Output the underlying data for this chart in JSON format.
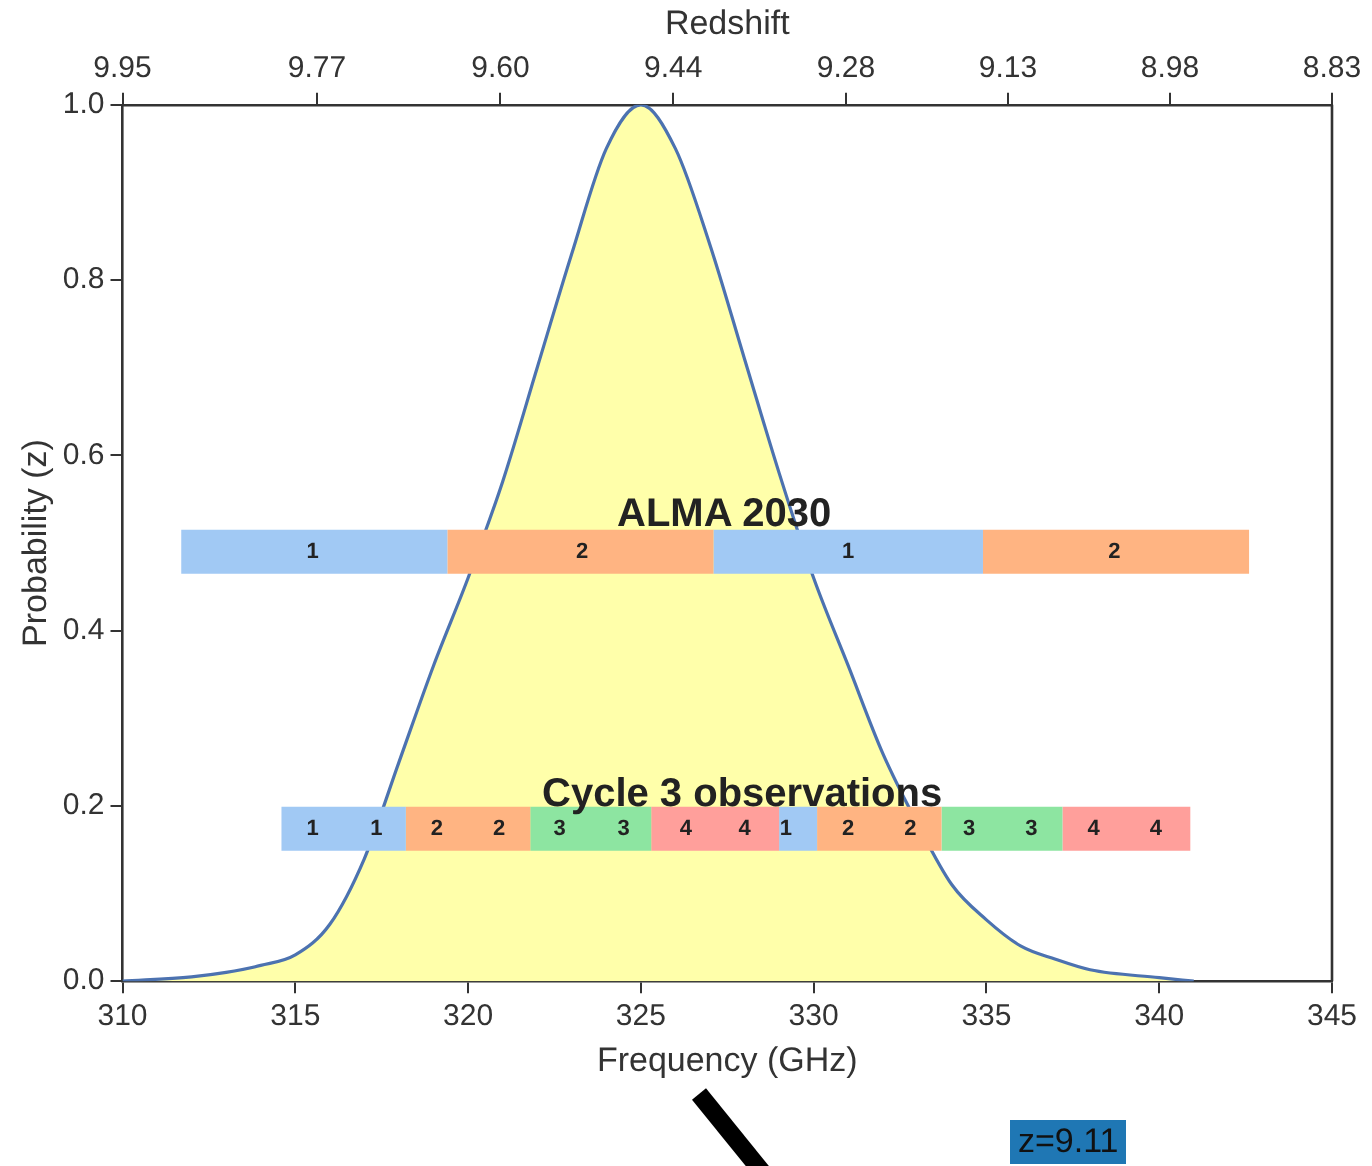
{
  "chart_data": {
    "type": "line",
    "xlabel": "Frequency (GHz)",
    "ylabel": "Probability (z)",
    "x2label": "Redshift",
    "xlim": [
      310,
      345
    ],
    "xticks": [
      310,
      315,
      320,
      325,
      330,
      335,
      340,
      345
    ],
    "ylim": [
      0,
      1
    ],
    "yticks": [
      {
        "value": 0,
        "label": "0.0"
      },
      {
        "value": 0.2,
        "label": "0.2"
      },
      {
        "value": 0.4,
        "label": "0.4"
      },
      {
        "value": 0.6,
        "label": "0.6"
      },
      {
        "value": 0.8,
        "label": "0.8"
      },
      {
        "value": 1,
        "label": "1.0"
      }
    ],
    "x2lim": [
      9.95,
      8.83
    ],
    "x2ticks": [
      {
        "value": 9.95,
        "label": "9.95"
      },
      {
        "value": 9.77,
        "label": "9.77"
      },
      {
        "value": 9.6,
        "label": "9.60"
      },
      {
        "value": 9.44,
        "label": "9.44"
      },
      {
        "value": 9.28,
        "label": "9.28"
      },
      {
        "value": 9.13,
        "label": "9.13"
      },
      {
        "value": 8.98,
        "label": "8.98"
      },
      {
        "value": 8.83,
        "label": "8.83"
      }
    ],
    "grid": false,
    "legend": false,
    "marker": "none",
    "line_style": "solid",
    "series": [
      {
        "type": "area",
        "color": "#ffffaa",
        "x": [
          310,
          312,
          313,
          314,
          315,
          316,
          317,
          318,
          319,
          320,
          321,
          322,
          323,
          324,
          325,
          326,
          327,
          328,
          329,
          330,
          331,
          332,
          333,
          334,
          335,
          336,
          337,
          338,
          340,
          341
        ],
        "values": [
          0,
          0.005,
          0.01,
          0.018,
          0.03,
          0.065,
          0.14,
          0.25,
          0.36,
          0.46,
          0.57,
          0.7,
          0.83,
          0.95,
          1,
          0.95,
          0.84,
          0.71,
          0.58,
          0.46,
          0.36,
          0.26,
          0.18,
          0.11,
          0.07,
          0.04,
          0.025,
          0.013,
          0.004,
          0
        ]
      },
      {
        "color": "#a1c9f4",
        "x": [
          311.7,
          319.4
        ],
        "values": [
          0.49,
          0.49
        ]
      },
      {
        "color": "#ffb482",
        "x": [
          319.4,
          327.1
        ],
        "values": [
          0.49,
          0.49
        ]
      },
      {
        "color": "#a1c9f4",
        "x": [
          327.1,
          334.9
        ],
        "values": [
          0.49,
          0.49
        ]
      },
      {
        "color": "#ffb482",
        "x": [
          334.9,
          342.6
        ],
        "values": [
          0.49,
          0.49
        ]
      },
      {
        "color": "#a1c9f4",
        "x": [
          314.6,
          318.2
        ],
        "values": [
          0.174,
          0.174
        ]
      },
      {
        "color": "#ffb482",
        "x": [
          318.2,
          321.8
        ],
        "values": [
          0.174,
          0.174
        ]
      },
      {
        "color": "#8de5a1",
        "x": [
          321.8,
          325.3
        ],
        "values": [
          0.174,
          0.174
        ]
      },
      {
        "color": "#ff9f9b",
        "x": [
          325.3,
          329.0
        ],
        "values": [
          0.174,
          0.174
        ]
      },
      {
        "color": "#a1c9f4",
        "x": [
          329.0,
          330.1
        ],
        "values": [
          0.174,
          0.174
        ]
      },
      {
        "color": "#ffb482",
        "x": [
          330.1,
          333.7
        ],
        "values": [
          0.174,
          0.174
        ]
      },
      {
        "color": "#8de5a1",
        "x": [
          333.7,
          337.2
        ],
        "values": [
          0.174,
          0.174
        ]
      },
      {
        "color": "#ff9f9b",
        "x": [
          337.2,
          340.9
        ],
        "values": [
          0.174,
          0.174
        ]
      }
    ],
    "annotations": [
      "ALMA 2030",
      {
        "text": "1",
        "x": 315.5,
        "y": 0.49
      },
      {
        "text": "2",
        "x": 323.3,
        "y": 0.49
      },
      {
        "text": "1",
        "x": 331.0,
        "y": 0.49
      },
      {
        "text": "2",
        "x": 338.7,
        "y": 0.49
      },
      "Cycle 3 observations",
      {
        "text": "1",
        "x": 315.5,
        "y": 0.174
      },
      {
        "text": "1",
        "x": 317.35,
        "y": 0.174
      },
      {
        "text": "2",
        "x": 319.1,
        "y": 0.174
      },
      {
        "text": "2",
        "x": 320.9,
        "y": 0.174
      },
      {
        "text": "3",
        "x": 322.65,
        "y": 0.174
      },
      {
        "text": "3",
        "x": 324.5,
        "y": 0.174
      },
      {
        "text": "4",
        "x": 326.3,
        "y": 0.174
      },
      {
        "text": "4",
        "x": 328.0,
        "y": 0.174
      },
      {
        "text": "1",
        "x": 329.2,
        "y": 0.174
      },
      {
        "text": "2",
        "x": 331.0,
        "y": 0.174
      },
      {
        "text": "2",
        "x": 332.8,
        "y": 0.174
      },
      {
        "text": "3",
        "x": 334.5,
        "y": 0.174
      },
      {
        "text": "3",
        "x": 336.3,
        "y": 0.174
      },
      {
        "text": "4",
        "x": 338.1,
        "y": 0.174
      },
      {
        "text": "4",
        "x": 339.9,
        "y": 0.174
      },
      "z=9.11"
    ]
  }
}
